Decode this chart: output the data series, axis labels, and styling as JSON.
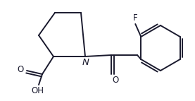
{
  "background": "#ffffff",
  "line_color": "#1a1a2e",
  "line_width": 1.4,
  "font_size": 8.5,
  "figsize": [
    2.77,
    1.43
  ],
  "dpi": 100,
  "xlim": [
    0,
    277
  ],
  "ylim": [
    0,
    143
  ]
}
